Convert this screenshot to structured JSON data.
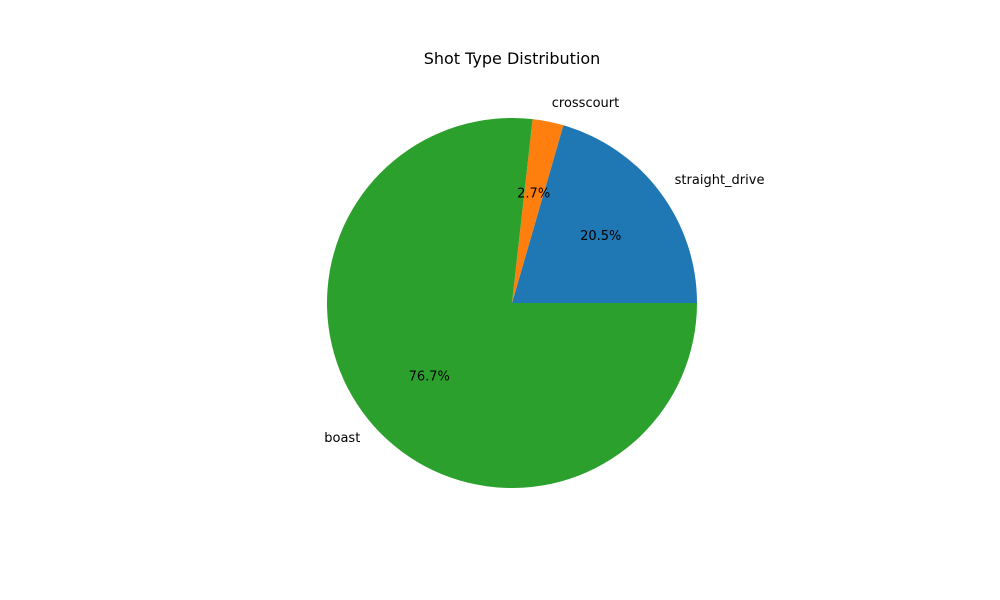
{
  "chart_data": {
    "type": "pie",
    "title": "Shot Type Distribution",
    "start_angle_deg": 0,
    "direction": "counterclockwise",
    "slices": [
      {
        "label": "straight_drive",
        "value": 20.5,
        "pct_label": "20.5%",
        "color": "#1f77b4"
      },
      {
        "label": "crosscourt",
        "value": 2.7,
        "pct_label": "2.7%",
        "color": "#ff7f0e"
      },
      {
        "label": "boast",
        "value": 76.7,
        "pct_label": "76.7%",
        "color": "#2ca02c"
      }
    ]
  }
}
